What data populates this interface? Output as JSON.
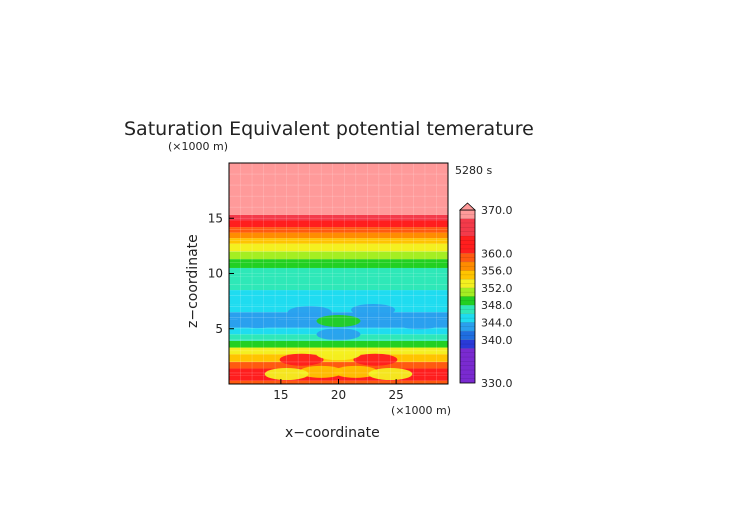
{
  "chart_data": {
    "type": "heatmap",
    "title": "Saturation Equivalent potential temerature",
    "time_label": "5280 s",
    "xlabel": "x−coordinate",
    "ylabel": "z−coordinate",
    "x_unit": "(×1000 m)",
    "y_unit": "(×1000 m)",
    "xlim": [
      10.5,
      29.5
    ],
    "ylim": [
      0,
      20
    ],
    "x_ticks": [
      15,
      20,
      25
    ],
    "y_ticks": [
      5,
      10,
      15
    ],
    "colorbar": {
      "range": [
        330,
        370
      ],
      "tick_labels": [
        {
          "value": 370,
          "label": "370.0"
        },
        {
          "value": 360,
          "label": "360.0"
        },
        {
          "value": 356,
          "label": "356.0"
        },
        {
          "value": 352,
          "label": "352.0"
        },
        {
          "value": 348,
          "label": "348.0"
        },
        {
          "value": 344,
          "label": "344.0"
        },
        {
          "value": 340,
          "label": "340.0"
        },
        {
          "value": 330,
          "label": "330.0"
        }
      ],
      "levels": [
        {
          "min": 330,
          "max": 338,
          "color": "#7a2ad0"
        },
        {
          "min": 338,
          "max": 340,
          "color": "#2a3ad8"
        },
        {
          "min": 340,
          "max": 342,
          "color": "#1f6ee0"
        },
        {
          "min": 342,
          "max": 344,
          "color": "#2aa0ee"
        },
        {
          "min": 344,
          "max": 346,
          "color": "#1fdcf0"
        },
        {
          "min": 346,
          "max": 348,
          "color": "#2ee8b8"
        },
        {
          "min": 348,
          "max": 350,
          "color": "#22d022"
        },
        {
          "min": 350,
          "max": 352,
          "color": "#a4ee22"
        },
        {
          "min": 352,
          "max": 354,
          "color": "#f4f020"
        },
        {
          "min": 354,
          "max": 356,
          "color": "#ffc400"
        },
        {
          "min": 356,
          "max": 358,
          "color": "#ff8c00"
        },
        {
          "min": 358,
          "max": 360,
          "color": "#ff5a10"
        },
        {
          "min": 360,
          "max": 364,
          "color": "#ff1e1e"
        },
        {
          "min": 364,
          "max": 368,
          "color": "#f43a4a"
        },
        {
          "min": 368,
          "max": 370,
          "color": "#ff9a9a"
        }
      ]
    },
    "z_profile": [
      {
        "z": 0.3,
        "value": 358
      },
      {
        "z": 0.8,
        "value": 362
      },
      {
        "z": 1.4,
        "value": 361
      },
      {
        "z": 2.0,
        "value": 358
      },
      {
        "z": 2.7,
        "value": 354
      },
      {
        "z": 3.3,
        "value": 352
      },
      {
        "z": 3.9,
        "value": 349
      },
      {
        "z": 4.5,
        "value": 347
      },
      {
        "z": 5.1,
        "value": 345
      },
      {
        "z": 5.8,
        "value": 343
      },
      {
        "z": 6.5,
        "value": 343
      },
      {
        "z": 7.2,
        "value": 344
      },
      {
        "z": 8.5,
        "value": 345
      },
      {
        "z": 9.7,
        "value": 346
      },
      {
        "z": 10.5,
        "value": 347
      },
      {
        "z": 11.3,
        "value": 349
      },
      {
        "z": 12.0,
        "value": 351
      },
      {
        "z": 12.7,
        "value": 353
      },
      {
        "z": 13.2,
        "value": 355
      },
      {
        "z": 13.7,
        "value": 357
      },
      {
        "z": 14.2,
        "value": 359
      },
      {
        "z": 14.8,
        "value": 363
      },
      {
        "z": 15.3,
        "value": 366
      },
      {
        "z": 20.0,
        "value": 369
      }
    ],
    "anomalies": [
      {
        "x": 17.5,
        "z": 6.5,
        "value": 343
      },
      {
        "x": 23.0,
        "z": 6.7,
        "value": 343
      },
      {
        "x": 13.0,
        "z": 5.6,
        "value": 343
      },
      {
        "x": 27.0,
        "z": 5.5,
        "value": 343
      },
      {
        "x": 20.0,
        "z": 4.5,
        "value": 342
      },
      {
        "x": 20.0,
        "z": 5.7,
        "value": 348
      },
      {
        "x": 16.8,
        "z": 2.2,
        "value": 362
      },
      {
        "x": 23.2,
        "z": 2.2,
        "value": 362
      },
      {
        "x": 18.5,
        "z": 1.1,
        "value": 354
      },
      {
        "x": 21.5,
        "z": 1.1,
        "value": 354
      },
      {
        "x": 15.5,
        "z": 0.9,
        "value": 353
      },
      {
        "x": 24.5,
        "z": 0.9,
        "value": 353
      },
      {
        "x": 20.0,
        "z": 2.7,
        "value": 353
      }
    ]
  }
}
